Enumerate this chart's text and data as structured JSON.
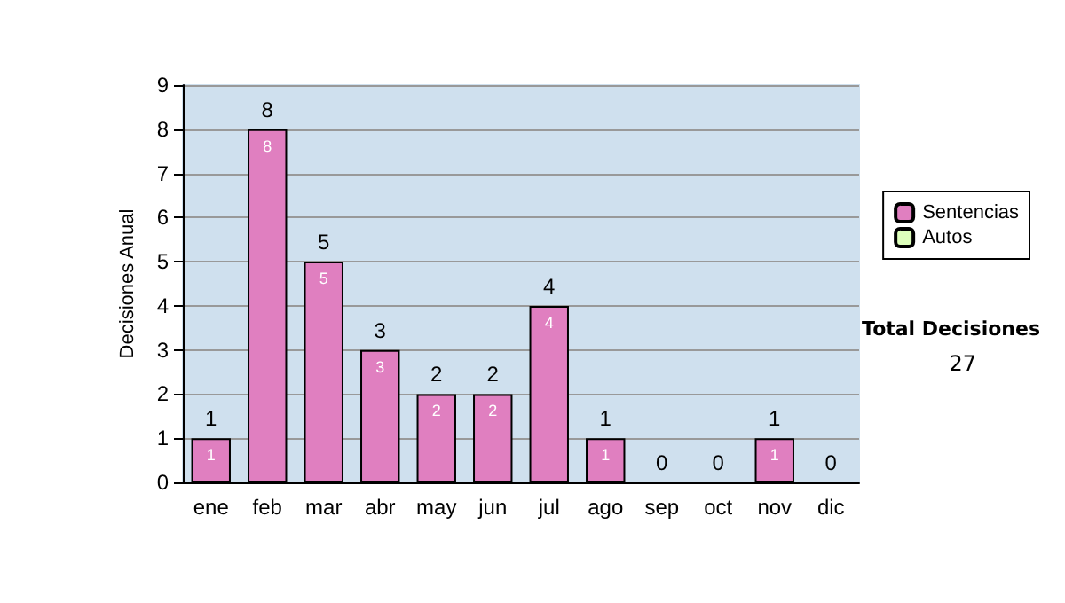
{
  "chart_data": {
    "type": "bar",
    "ylabel": "Decisiones Anual",
    "categories": [
      "ene",
      "feb",
      "mar",
      "abr",
      "may",
      "jun",
      "jul",
      "ago",
      "sep",
      "oct",
      "nov",
      "dic"
    ],
    "series": [
      {
        "name": "Sentencias",
        "color": "#e07fc0",
        "values": [
          1,
          8,
          5,
          3,
          2,
          2,
          4,
          1,
          0,
          0,
          1,
          0
        ],
        "value_labels": [
          "1",
          "8",
          "5",
          "3",
          "2",
          "2",
          "4",
          "1",
          null,
          null,
          "1",
          null
        ]
      },
      {
        "name": "Autos",
        "color": "#ddffbb",
        "values": [
          0,
          0,
          0,
          0,
          0,
          0,
          0,
          0,
          0,
          0,
          0,
          0
        ]
      }
    ],
    "stacked": true,
    "totals": [
      "1",
      "8",
      "5",
      "3",
      "2",
      "2",
      "4",
      "1",
      "0",
      "0",
      "1",
      "0"
    ],
    "ylim": [
      0,
      9
    ],
    "yticks": [
      0,
      1,
      2,
      3,
      4,
      5,
      6,
      7,
      8,
      9
    ],
    "grid": "y",
    "legend": "right",
    "annotations": [
      "Total Decisiones",
      "27"
    ]
  }
}
